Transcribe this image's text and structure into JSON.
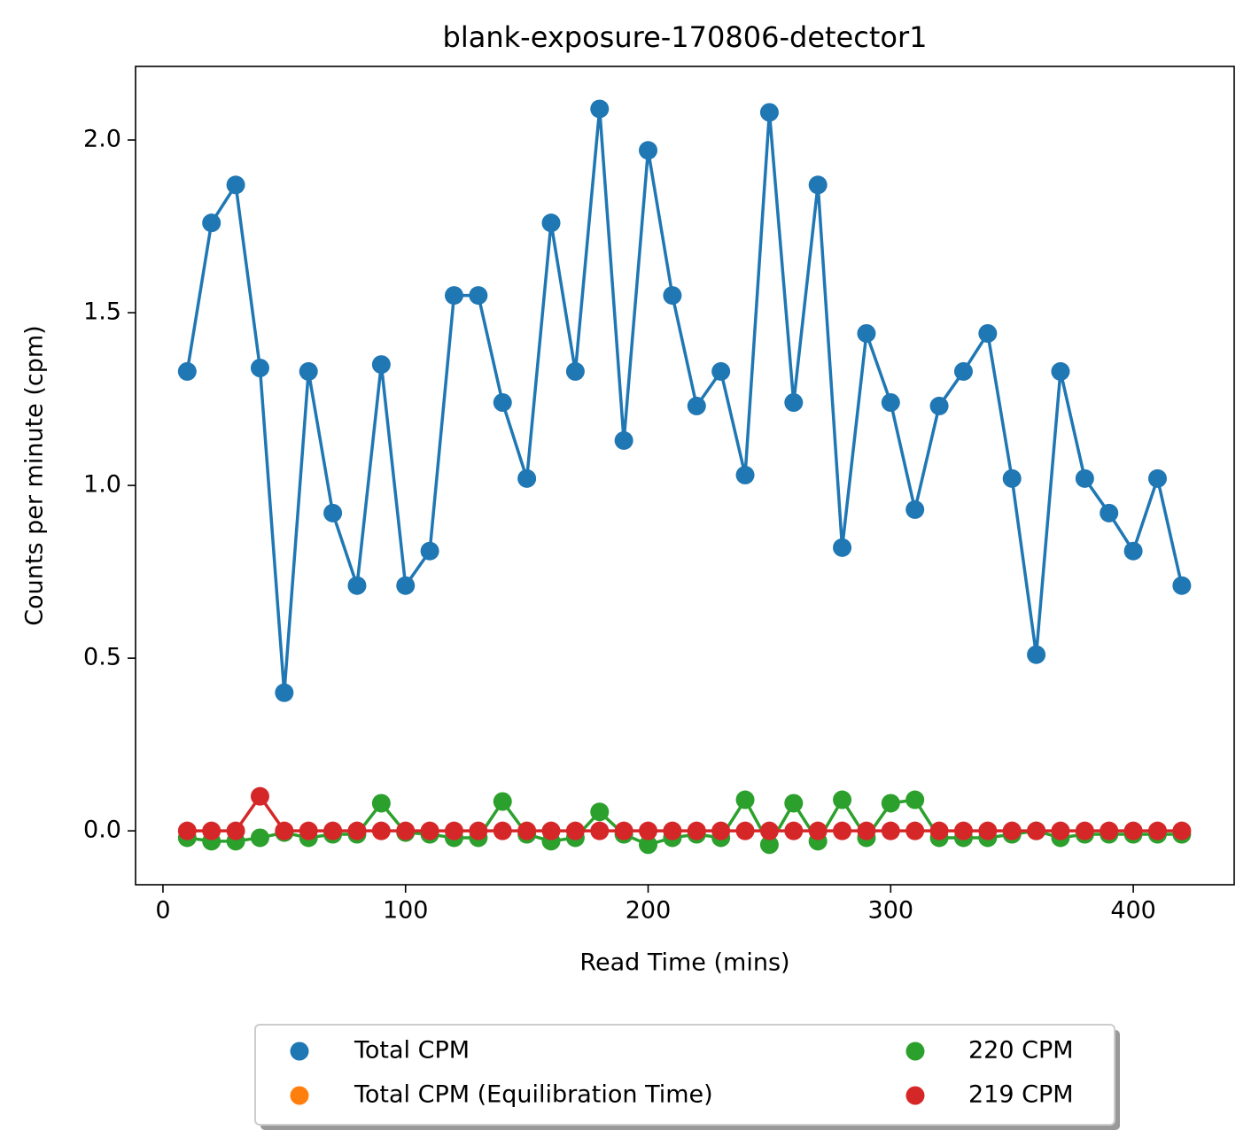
{
  "chart_data": {
    "type": "line",
    "title": "blank-exposure-170806-detector1",
    "x_label": "Read Time (mins)",
    "y_label": "Counts per minute (cpm)",
    "x": [
      10,
      20,
      30,
      40,
      50,
      60,
      70,
      80,
      90,
      100,
      110,
      120,
      130,
      140,
      150,
      160,
      170,
      180,
      190,
      200,
      210,
      220,
      230,
      240,
      250,
      260,
      270,
      280,
      290,
      300,
      310,
      320,
      330,
      340,
      350,
      360,
      370,
      380,
      390,
      400,
      410,
      420
    ],
    "series": [
      {
        "name": "Total CPM",
        "color": "#1f77b4",
        "values": [
          1.33,
          1.76,
          1.87,
          1.34,
          0.4,
          1.33,
          0.92,
          0.71,
          1.35,
          0.71,
          0.81,
          1.55,
          1.55,
          1.24,
          1.02,
          1.76,
          1.33,
          2.09,
          1.13,
          1.97,
          1.55,
          1.23,
          1.33,
          1.03,
          2.08,
          1.24,
          1.87,
          0.82,
          1.44,
          1.24,
          0.93,
          1.23,
          1.33,
          1.44,
          1.02,
          0.51,
          1.33,
          1.02,
          0.92,
          0.81,
          1.02,
          0.71
        ]
      },
      {
        "name": "Total CPM (Equilibration Time)",
        "color": "#ff7f0e",
        "values": [
          null,
          null,
          null,
          null,
          null,
          null,
          null,
          null,
          null,
          null,
          null,
          null,
          null,
          null,
          null,
          null,
          null,
          null,
          null,
          null,
          null,
          null,
          null,
          null,
          null,
          null,
          null,
          null,
          null,
          null,
          null,
          null,
          null,
          null,
          null,
          null,
          null,
          null,
          null,
          null,
          null,
          null
        ]
      },
      {
        "name": "220 CPM",
        "color": "#2ca02c",
        "values": [
          -0.02,
          -0.03,
          -0.03,
          -0.02,
          -0.005,
          -0.02,
          -0.01,
          -0.01,
          0.08,
          -0.005,
          -0.01,
          -0.02,
          -0.02,
          0.085,
          -0.01,
          -0.03,
          -0.02,
          0.055,
          -0.01,
          -0.04,
          -0.02,
          -0.01,
          -0.02,
          0.09,
          -0.04,
          0.08,
          -0.03,
          0.09,
          -0.02,
          0.08,
          0.09,
          -0.02,
          -0.02,
          -0.02,
          -0.01,
          0,
          -0.02,
          -0.01,
          -0.01,
          -0.01,
          -0.01,
          -0.01
        ]
      },
      {
        "name": "219 CPM",
        "color": "#d62728",
        "values": [
          0,
          0,
          0,
          0.1,
          0,
          0,
          0,
          0,
          0,
          0,
          0,
          0,
          0,
          0,
          0,
          0,
          0,
          0,
          0,
          0,
          0,
          0,
          0,
          0,
          0,
          0,
          0,
          0,
          0,
          0,
          0,
          0,
          0,
          0,
          0,
          0,
          0,
          0,
          0,
          0,
          0,
          0
        ]
      }
    ],
    "xlim": [
      -11.3,
      441.6
    ],
    "ylim": [
      -0.156,
      2.213
    ],
    "xticks": [
      0,
      100,
      200,
      300,
      400
    ],
    "yticks": [
      {
        "value": 0,
        "label": "0.0"
      },
      0.5,
      {
        "value": 1,
        "label": "1.0"
      },
      1.5,
      {
        "value": 2,
        "label": "2.0"
      }
    ],
    "legend": "lower center outside"
  }
}
